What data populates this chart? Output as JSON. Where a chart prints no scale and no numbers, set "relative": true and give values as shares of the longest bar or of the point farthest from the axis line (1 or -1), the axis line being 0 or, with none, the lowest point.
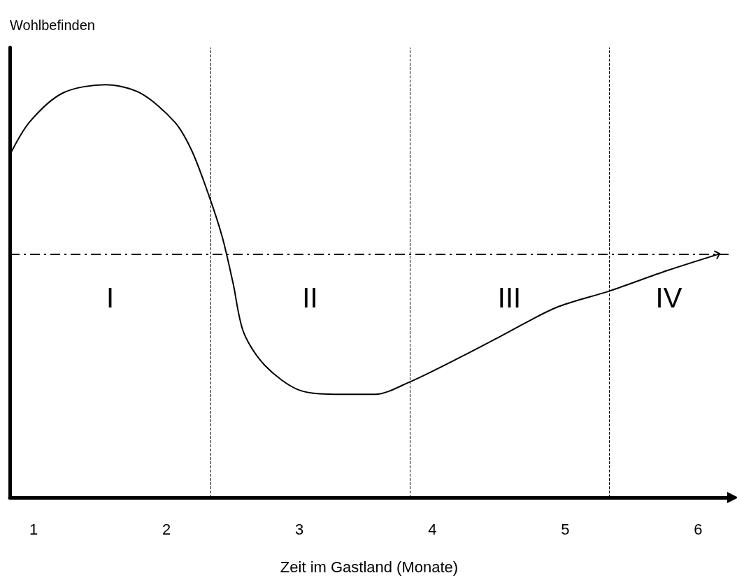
{
  "chart_data": {
    "type": "line",
    "relative": true,
    "xlabel": "Zeit im Gastland (Monate)",
    "ylabel": "Wohlbefinden",
    "xlim": [
      0.82,
      6.23
    ],
    "xticks": [
      1,
      2,
      3,
      4,
      5,
      6
    ],
    "grid": false,
    "marker": "none",
    "line_style": "solid",
    "series": [
      {
        "color": "#000000",
        "x": [
          0.82,
          0.97,
          1.22,
          1.54,
          1.8,
          2.06,
          2.19,
          2.32,
          2.42,
          2.5,
          2.58,
          2.74,
          3.0,
          3.31,
          3.57,
          3.83,
          4.15,
          4.51,
          4.93,
          5.33,
          5.77,
          6.16
        ],
        "values": [
          0.83,
          0.91,
          0.98,
          1.0,
          0.98,
          0.91,
          0.84,
          0.73,
          0.63,
          0.52,
          0.4,
          0.32,
          0.26,
          0.25,
          0.25,
          0.28,
          0.33,
          0.39,
          0.46,
          0.5,
          0.55,
          0.59
        ]
      }
    ],
    "ref_lines": [
      {
        "axis": "y",
        "value": 0.59,
        "line_style": "dashed",
        "color": "#000000"
      },
      {
        "axis": "x",
        "value": 2.33,
        "line_style": "dashed",
        "color": "#000000"
      },
      {
        "axis": "x",
        "value": 3.83,
        "line_style": "dashed",
        "color": "#000000"
      },
      {
        "axis": "x",
        "value": 5.33,
        "line_style": "dashed",
        "color": "#000000"
      }
    ],
    "annotations": [
      "I",
      "II",
      "III",
      "IV"
    ]
  }
}
